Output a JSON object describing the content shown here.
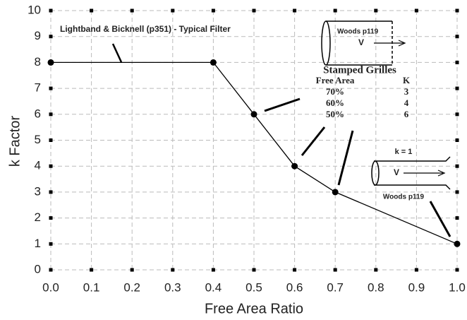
{
  "chart_data": {
    "type": "line",
    "x_label": "Free Area Ratio",
    "y_label": "k Factor",
    "x": [
      0,
      0.4,
      0.5,
      0.6,
      0.7,
      1.0
    ],
    "series": [
      {
        "color": "#000000",
        "values": [
          8,
          8,
          6,
          4,
          3,
          1
        ]
      }
    ],
    "xlim": [
      0,
      1
    ],
    "ylim": [
      0,
      10
    ],
    "xticks": [
      {
        "value": 0,
        "label": "0.0"
      },
      0.1,
      0.2,
      0.3,
      0.4,
      0.5,
      0.6,
      0.7,
      0.8,
      0.9,
      {
        "value": 1,
        "label": "1.0"
      }
    ],
    "yticks": [
      0,
      1,
      2,
      3,
      4,
      5,
      6,
      7,
      8,
      9,
      10
    ],
    "grid": true,
    "annotations": {
      "filter_label": "Lightband & Bicknell (p351) - Typical Filter",
      "grille_source": "Woods p119",
      "grille_velocity": "V",
      "grille_title": "Stamped Grilles",
      "grille_header": [
        "Free Area",
        "K"
      ],
      "grille_rows": [
        [
          "70%",
          3
        ],
        [
          "60%",
          4
        ],
        [
          "50%",
          6
        ]
      ],
      "duct_k": "k = 1",
      "duct_velocity": "V",
      "duct_source": "Woods p119"
    }
  }
}
